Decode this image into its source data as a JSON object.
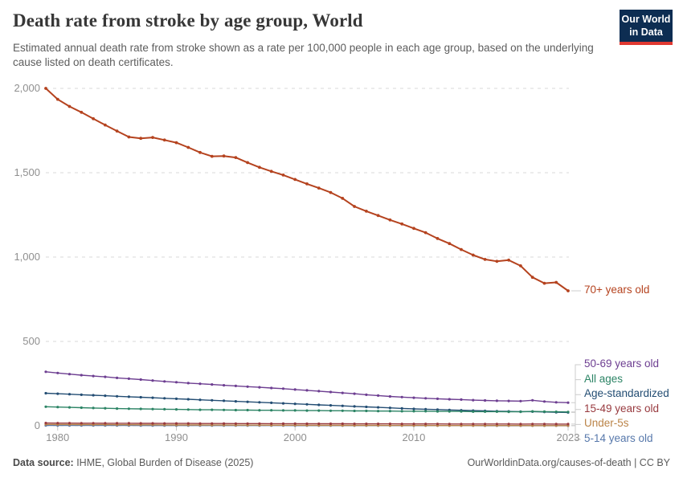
{
  "header": {
    "title": "Death rate from stroke by age group, World",
    "subtitle": "Estimated annual death rate from stroke shown as a rate per 100,000 people in each age group, based on the underlying cause listed on death certificates.",
    "logo_line1": "Our World",
    "logo_line2": "in Data",
    "logo_bg": "#0d2d52",
    "logo_accent": "#e03931"
  },
  "footer": {
    "source_label": "Data source:",
    "source_value": " IHME, Global Burden of Disease (2025)",
    "credit": "OurWorldinData.org/causes-of-death | CC BY"
  },
  "chart_data": {
    "type": "line",
    "title": "Death rate from stroke by age group, World",
    "unit": "deaths per 100,000 people",
    "grid": "horizontal-dashed",
    "legend_position": "right",
    "ylim": [
      0,
      2000
    ],
    "yticks": [
      0,
      500,
      1000,
      1500,
      2000
    ],
    "ytick_labels": [
      "0",
      "500",
      "1,000",
      "1,500",
      "2,000"
    ],
    "xticks": [
      1980,
      1990,
      2000,
      2010,
      2023
    ],
    "x": [
      1979,
      1980,
      1981,
      1982,
      1983,
      1984,
      1985,
      1986,
      1987,
      1988,
      1989,
      1990,
      1991,
      1992,
      1993,
      1994,
      1995,
      1996,
      1997,
      1998,
      1999,
      2000,
      2001,
      2002,
      2003,
      2004,
      2005,
      2006,
      2007,
      2008,
      2009,
      2010,
      2011,
      2012,
      2013,
      2014,
      2015,
      2016,
      2017,
      2018,
      2019,
      2020,
      2021,
      2022,
      2023
    ],
    "series": [
      {
        "name": "70+ years old",
        "color": "#b5431f",
        "values": [
          2000,
          1935,
          1893,
          1858,
          1820,
          1783,
          1747,
          1712,
          1704,
          1709,
          1694,
          1678,
          1650,
          1620,
          1597,
          1599,
          1590,
          1560,
          1532,
          1508,
          1486,
          1460,
          1434,
          1409,
          1383,
          1348,
          1300,
          1272,
          1246,
          1220,
          1196,
          1170,
          1145,
          1110,
          1080,
          1045,
          1012,
          986,
          975,
          982,
          948,
          880,
          845,
          850,
          800
        ]
      },
      {
        "name": "50-69 years old",
        "color": "#6d3e91",
        "values": [
          320,
          313,
          306,
          300,
          295,
          290,
          284,
          279,
          274,
          268,
          263,
          258,
          253,
          249,
          245,
          240,
          236,
          232,
          228,
          224,
          220,
          215,
          210,
          205,
          200,
          195,
          190,
          184,
          179,
          174,
          170,
          166,
          163,
          160,
          157,
          155,
          152,
          150,
          148,
          147,
          146,
          151,
          144,
          139,
          137
        ]
      },
      {
        "name": "All ages",
        "color": "#2c8465",
        "values": [
          113,
          111,
          109,
          107,
          105,
          104,
          102,
          101,
          100,
          99,
          98,
          97,
          96,
          95,
          95,
          94,
          93,
          93,
          92,
          92,
          91,
          91,
          90,
          90,
          89,
          89,
          88,
          88,
          87,
          87,
          86,
          86,
          86,
          85,
          85,
          85,
          84,
          84,
          84,
          83,
          83,
          85,
          84,
          83,
          82
        ]
      },
      {
        "name": "Age-standardized",
        "color": "#234d73",
        "values": [
          193,
          190,
          187,
          184,
          181,
          178,
          175,
          172,
          169,
          166,
          163,
          160,
          157,
          154,
          151,
          148,
          145,
          142,
          139,
          136,
          133,
          130,
          127,
          124,
          121,
          118,
          115,
          112,
          109,
          106,
          103,
          100,
          98,
          96,
          94,
          92,
          90,
          88,
          86,
          85,
          84,
          84,
          82,
          80,
          79
        ]
      },
      {
        "name": "15-49 years old",
        "color": "#983a3f",
        "values": [
          16,
          15.8,
          15.6,
          15.4,
          15.2,
          15,
          14.8,
          14.6,
          14.4,
          14.2,
          14,
          13.8,
          13.6,
          13.4,
          13.3,
          13.1,
          13,
          12.8,
          12.7,
          12.5,
          12.4,
          12.2,
          12.1,
          12,
          11.8,
          11.7,
          11.6,
          11.4,
          11.3,
          11.2,
          11.1,
          11,
          10.9,
          10.8,
          10.7,
          10.6,
          10.5,
          10.4,
          10.3,
          10.3,
          10.2,
          10.5,
          10.3,
          10.1,
          10
        ]
      },
      {
        "name": "Under-5s",
        "color": "#bb8448",
        "values": [
          8,
          7.7,
          7.4,
          7.1,
          6.8,
          6.5,
          6.2,
          6,
          5.7,
          5.5,
          5.2,
          5,
          4.8,
          4.6,
          4.4,
          4.2,
          4,
          3.8,
          3.6,
          3.5,
          3.3,
          3.1,
          3,
          2.8,
          2.7,
          2.5,
          2.4,
          2.3,
          2.2,
          2,
          1.9,
          1.8,
          1.7,
          1.6,
          1.6,
          1.5,
          1.4,
          1.4,
          1.3,
          1.2,
          1.2,
          1.1,
          1.1,
          1,
          1
        ]
      },
      {
        "name": "5-14 years old",
        "color": "#5778ab",
        "values": [
          2,
          2,
          1.9,
          1.9,
          1.8,
          1.8,
          1.7,
          1.7,
          1.6,
          1.6,
          1.5,
          1.5,
          1.4,
          1.4,
          1.4,
          1.3,
          1.3,
          1.3,
          1.2,
          1.2,
          1.2,
          1.1,
          1.1,
          1.1,
          1,
          1,
          1,
          1,
          0.9,
          0.9,
          0.9,
          0.9,
          0.8,
          0.8,
          0.8,
          0.8,
          0.8,
          0.7,
          0.7,
          0.7,
          0.7,
          0.7,
          0.7,
          0.7,
          0.7
        ]
      }
    ]
  }
}
